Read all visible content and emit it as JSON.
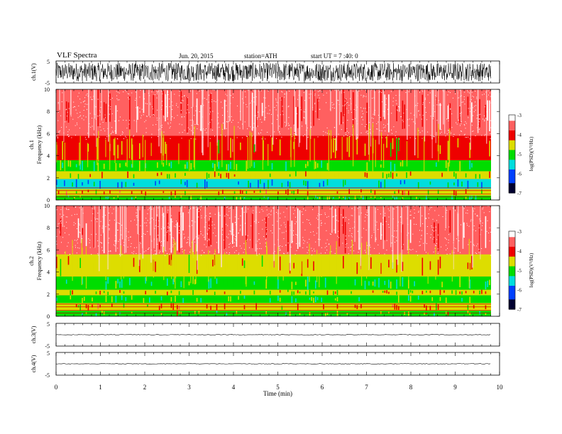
{
  "header": {
    "title": "VLF Spectra",
    "date": "Jun. 20, 2015",
    "station": "station=ATH",
    "start": "start UT =  7 :40: 0"
  },
  "chart_data": [
    {
      "type": "line",
      "panel": "ch1-waveform",
      "ylabel": "ch.1(V)",
      "ylim": [
        -5,
        5
      ],
      "yticks": [
        "5",
        "-5"
      ],
      "xlim": [
        0,
        10
      ],
      "note": "dense broadband noise, amplitude about ±4 V"
    },
    {
      "type": "heatmap",
      "panel": "ch1-spectrogram",
      "ylabel": "ch.1 Frequency (kHz)",
      "ylim": [
        0,
        10
      ],
      "yticks": [
        "0",
        "2",
        "4",
        "6",
        "8",
        "10"
      ],
      "xlim": [
        0,
        9.8
      ],
      "colorbar": {
        "label": "log(PSD)(V²/Hz)",
        "range": [
          -7,
          -3
        ],
        "ticks": [
          "-3",
          "-4",
          "-5",
          "-6",
          "-7"
        ]
      },
      "bands": [
        {
          "freq": [
            0,
            0.4
          ],
          "level": -5.0
        },
        {
          "freq": [
            0.4,
            1.0
          ],
          "level": -4.3
        },
        {
          "freq": [
            1.0,
            1.9
          ],
          "level": -5.6
        },
        {
          "freq": [
            1.9,
            2.6
          ],
          "level": -4.6
        },
        {
          "freq": [
            2.6,
            3.6
          ],
          "level": -4.9
        },
        {
          "freq": [
            3.6,
            5.8
          ],
          "level": -4.25
        },
        {
          "freq": [
            5.8,
            10
          ],
          "level": -3.6
        }
      ]
    },
    {
      "type": "heatmap",
      "panel": "ch2-spectrogram",
      "ylabel": "ch.2 Frequency (kHz)",
      "ylim": [
        0,
        10
      ],
      "yticks": [
        "0",
        "2",
        "4",
        "6",
        "8",
        "10"
      ],
      "xlim": [
        0,
        9.8
      ],
      "colorbar": {
        "label": "log(PSD)(V²/Hz)",
        "range": [
          -7,
          -3
        ],
        "ticks": [
          "-3",
          "-4",
          "-5",
          "-6",
          "-7"
        ]
      },
      "bands": [
        {
          "freq": [
            0,
            0.5
          ],
          "level": -4.8
        },
        {
          "freq": [
            0.5,
            1.2
          ],
          "level": -4.3
        },
        {
          "freq": [
            1.2,
            1.9
          ],
          "level": -5.0
        },
        {
          "freq": [
            1.9,
            2.4
          ],
          "level": -4.6
        },
        {
          "freq": [
            2.4,
            3.6
          ],
          "level": -5.1
        },
        {
          "freq": [
            3.6,
            5.6
          ],
          "level": -4.3
        },
        {
          "freq": [
            5.6,
            10
          ],
          "level": -3.6
        }
      ]
    },
    {
      "type": "line",
      "panel": "ch3-waveform",
      "ylabel": "ch.3(V)",
      "ylim": [
        -5,
        5
      ],
      "yticks": [
        "5",
        "-5"
      ],
      "xlim": [
        0,
        9.8
      ],
      "baseline": 0
    },
    {
      "type": "line",
      "panel": "ch4-waveform",
      "ylabel": "ch.4(V)",
      "ylim": [
        -5,
        5
      ],
      "yticks": [
        "5",
        "-5"
      ],
      "xlim": [
        0,
        9.8
      ],
      "baseline": 0
    }
  ],
  "xaxis": {
    "label": "Time (min)",
    "ticks": [
      "0",
      "1",
      "2",
      "3",
      "4",
      "5",
      "6",
      "7",
      "8",
      "9",
      "10"
    ],
    "range": [
      0,
      10
    ]
  },
  "colors": {
    "c_m3": "#ffffff",
    "c_m35": "#ff6060",
    "c_m4": "#ee0000",
    "c_m45": "#dddd00",
    "c_m5": "#00dd00",
    "c_m55": "#00dddd",
    "c_m6": "#0040ff",
    "c_m7": "#000030"
  }
}
